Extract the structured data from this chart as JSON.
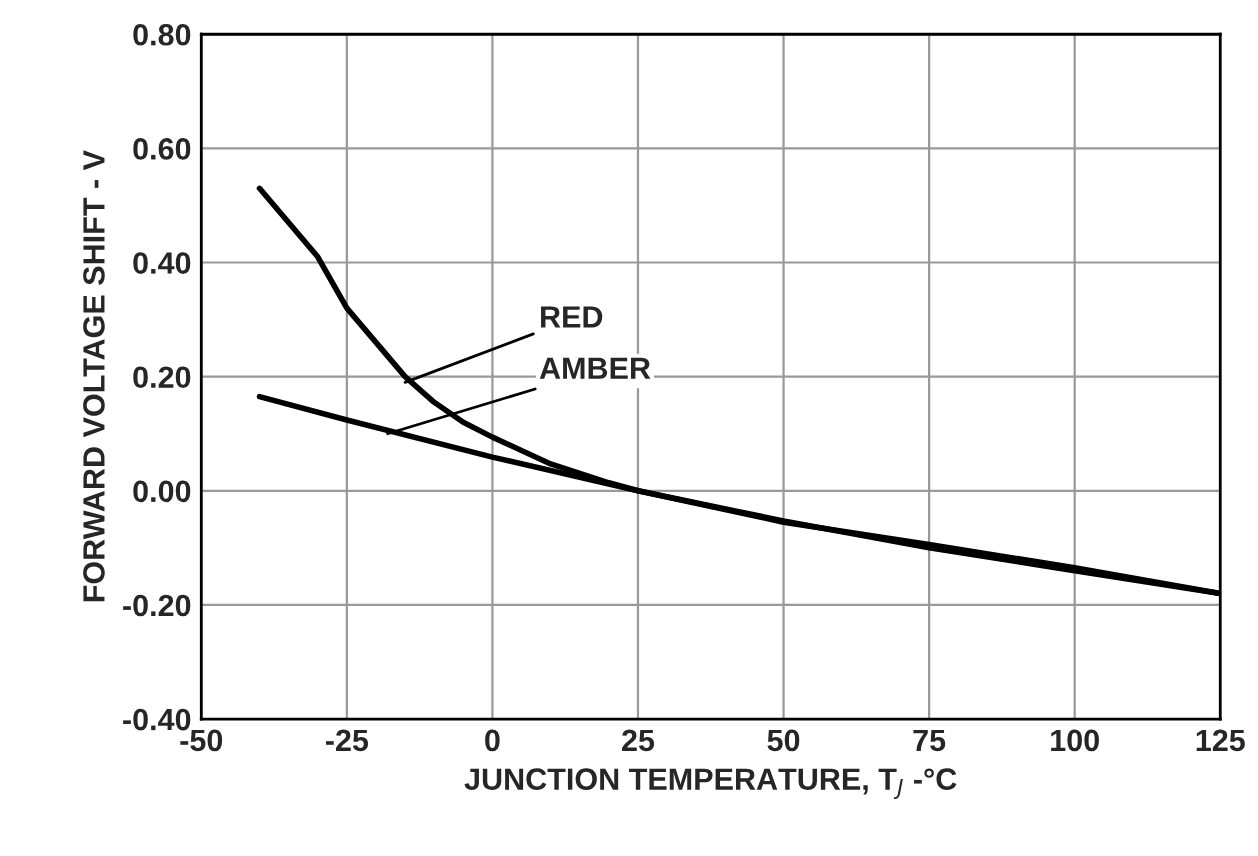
{
  "chart_data": {
    "type": "line",
    "xlabel": "JUNCTION TEMPERATURE, T$_{J}$ -°C",
    "ylabel": "FORWARD VOLTAGE SHIFT - V",
    "xlim": [
      -50,
      125
    ],
    "xticks": [
      -50,
      -25,
      0,
      25,
      50,
      75,
      100,
      125
    ],
    "ylim": [
      -0.4,
      0.8
    ],
    "yticks": [
      {
        "value": -0.4,
        "label": "-0.40"
      },
      {
        "value": -0.2,
        "label": "-0.20"
      },
      {
        "value": 0,
        "label": "0.00"
      },
      {
        "value": 0.2,
        "label": "0.20"
      },
      {
        "value": 0.4,
        "label": "0.40"
      },
      {
        "value": 0.6,
        "label": "0.60"
      },
      {
        "value": 0.8,
        "label": "0.80"
      }
    ],
    "grid": true,
    "line_style": "solid",
    "marker": "none",
    "series": [
      {
        "color": "#000000",
        "x": [
          -40,
          -30,
          -25,
          -20,
          -15,
          -10,
          -5,
          0,
          10,
          20,
          25,
          50,
          75,
          100,
          125
        ],
        "values": [
          0.53,
          0.41,
          0.32,
          0.26,
          0.2,
          0.155,
          0.12,
          0.094,
          0.047,
          0.014,
          0.0,
          -0.053,
          -0.1,
          -0.14,
          -0.18
        ]
      },
      {
        "color": "#000000",
        "x": [
          -40,
          -25,
          0,
          25,
          50,
          75,
          100,
          125
        ],
        "values": [
          0.165,
          0.124,
          0.059,
          0.0,
          -0.055,
          -0.094,
          -0.135,
          -0.18
        ]
      }
    ],
    "annotations": [
      {
        "text": "RED",
        "x": -15,
        "y": 0.19
      },
      {
        "text": "AMBER",
        "x": -18,
        "y": 0.1
      }
    ]
  }
}
